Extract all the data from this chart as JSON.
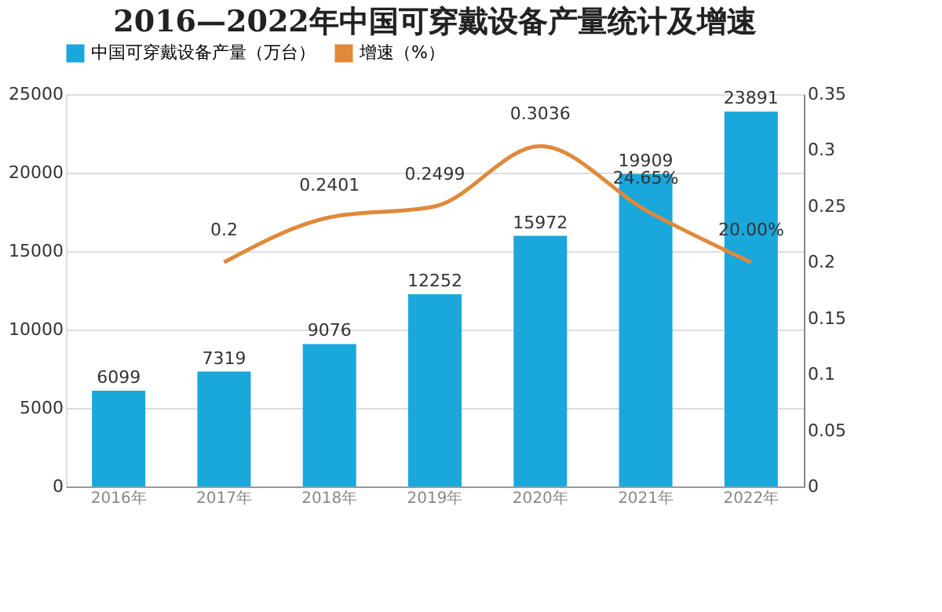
{
  "chart_data": {
    "type": "bar",
    "title": "2016—2022年中国可穿戴设备产量统计及增速",
    "categories": [
      "2016年",
      "2017年",
      "2018年",
      "2019年",
      "2020年",
      "2021年",
      "2022年"
    ],
    "series": [
      {
        "name": "中国可穿戴设备产量（万台）",
        "color": "#1aa7dc",
        "values": [
          6099,
          7319,
          9076,
          12252,
          15972,
          19909,
          23891
        ],
        "value_labels": [
          "6099",
          "7319",
          "9076",
          "12252",
          "15972",
          "19909",
          "23891"
        ]
      },
      {
        "name": "增速（%）",
        "type": "line",
        "axis": "y2",
        "color": "#e0893a",
        "values": [
          null,
          0.2,
          0.2401,
          0.2499,
          0.3036,
          0.2465,
          0.2
        ],
        "value_labels": [
          null,
          "0.2",
          "0.2401",
          "0.2499",
          "0.3036",
          "24.65%",
          "20.00%"
        ]
      }
    ],
    "ylim": [
      0,
      25000
    ],
    "yticks": [
      0,
      5000,
      10000,
      15000,
      20000,
      25000
    ],
    "y2lim": [
      0,
      0.35
    ],
    "y2ticks": [
      0,
      0.05,
      0.1,
      0.15,
      0.2,
      0.25,
      0.3,
      0.35
    ],
    "grid": "y",
    "legend": "top",
    "marker": "none",
    "line_style": "solid"
  }
}
